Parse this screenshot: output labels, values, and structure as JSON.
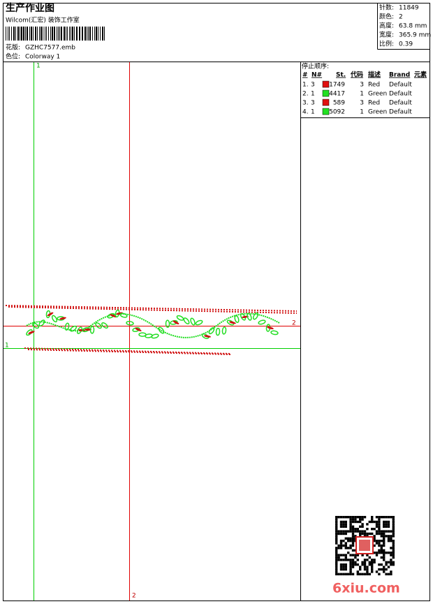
{
  "header": {
    "title": "生产作业图",
    "company": "Wilcom(汇宏) 装饰工作室",
    "design_label": "花版:",
    "design": "GZHC7577.emb",
    "colorway_label": "色位:",
    "colorway": "Colorway 1"
  },
  "info": [
    {
      "label": "针数:",
      "value": "11849"
    },
    {
      "label": "颜色:",
      "value": "2"
    },
    {
      "label": "高度:",
      "value": "63.8 mm"
    },
    {
      "label": "宽度:",
      "value": "365.9 mm"
    },
    {
      "label": "比例:",
      "value": "0.39"
    }
  ],
  "stop_sequence": {
    "title": "停止顺序:",
    "columns": [
      "#",
      "N#",
      "St.",
      "代码",
      "描述",
      "Brand",
      "元素"
    ],
    "rows": [
      {
        "index": "1.",
        "needle": "3",
        "color": "#e01010",
        "stitches": "1749",
        "code": "3",
        "description": "Red",
        "brand": "Default"
      },
      {
        "index": "2.",
        "needle": "1",
        "color": "#22e022",
        "stitches": "4417",
        "code": "1",
        "description": "Green",
        "brand": "Default"
      },
      {
        "index": "3.",
        "needle": "3",
        "color": "#e01010",
        "stitches": "589",
        "code": "3",
        "description": "Red",
        "brand": "Default"
      },
      {
        "index": "4.",
        "needle": "1",
        "color": "#22e022",
        "stitches": "5092",
        "code": "1",
        "description": "Green",
        "brand": "Default"
      }
    ]
  },
  "guides": {
    "top": "1",
    "bottom": "2",
    "right": "2",
    "left": "1"
  },
  "watermark": "6xiu.com"
}
